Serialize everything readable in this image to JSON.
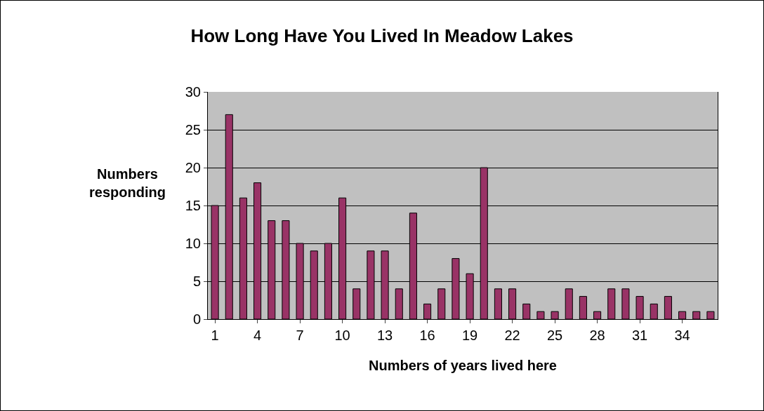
{
  "chart_data": {
    "type": "bar",
    "title": "How Long Have You Lived In Meadow Lakes",
    "xlabel": "Numbers of years lived here",
    "ylabel": "Numbers\nresponding",
    "categories": [
      "1",
      null,
      null,
      "4",
      null,
      null,
      "7",
      null,
      null,
      "10",
      null,
      null,
      "13",
      null,
      null,
      "16",
      null,
      null,
      "19",
      null,
      null,
      "22",
      null,
      null,
      "25",
      null,
      null,
      "28",
      null,
      null,
      "31",
      null,
      null,
      "34",
      null,
      null
    ],
    "values": [
      15,
      27,
      16,
      18,
      13,
      13,
      10,
      9,
      10,
      16,
      4,
      9,
      9,
      4,
      14,
      2,
      4,
      8,
      6,
      20,
      4,
      4,
      2,
      1,
      1,
      4,
      3,
      1,
      4,
      4,
      3,
      2,
      3,
      1,
      1,
      1
    ],
    "color": "#993366",
    "ylim": [
      0,
      30
    ],
    "yticks": [
      0,
      5,
      10,
      15,
      20,
      25,
      30
    ],
    "grid": "y"
  }
}
